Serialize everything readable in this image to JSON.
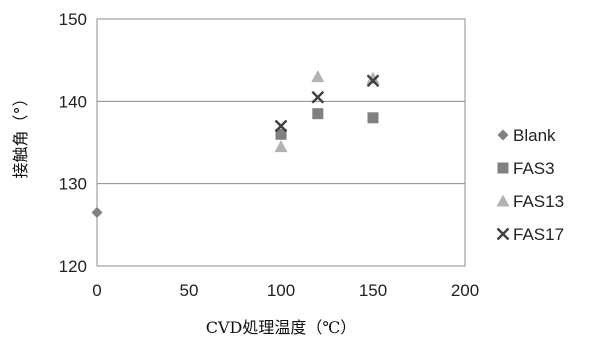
{
  "chart_data": {
    "type": "scatter",
    "xlabel": "CVD処理温度（℃）",
    "ylabel": "接触角（°）",
    "xlim": [
      0,
      200
    ],
    "ylim": [
      120,
      150
    ],
    "xticks": [
      "0",
      "50",
      "100",
      "150",
      "200"
    ],
    "yticks": [
      "120",
      "130",
      "140",
      "150"
    ],
    "grid": "horizontal",
    "legend": "right",
    "series": [
      {
        "name": "Blank",
        "marker": "diamond",
        "color": "#808080",
        "points": [
          [
            0,
            126.5
          ]
        ]
      },
      {
        "name": "FAS3",
        "marker": "square",
        "color": "#808080",
        "points": [
          [
            100,
            136
          ],
          [
            120,
            138.5
          ],
          [
            150,
            138
          ]
        ]
      },
      {
        "name": "FAS13",
        "marker": "triangle",
        "color": "#b3b3b3",
        "points": [
          [
            100,
            134.5
          ],
          [
            120,
            143
          ],
          [
            150,
            142.8
          ]
        ]
      },
      {
        "name": "FAS17",
        "marker": "x",
        "color": "#404040",
        "points": [
          [
            100,
            137
          ],
          [
            120,
            140.5
          ],
          [
            150,
            142.5
          ]
        ]
      }
    ]
  }
}
